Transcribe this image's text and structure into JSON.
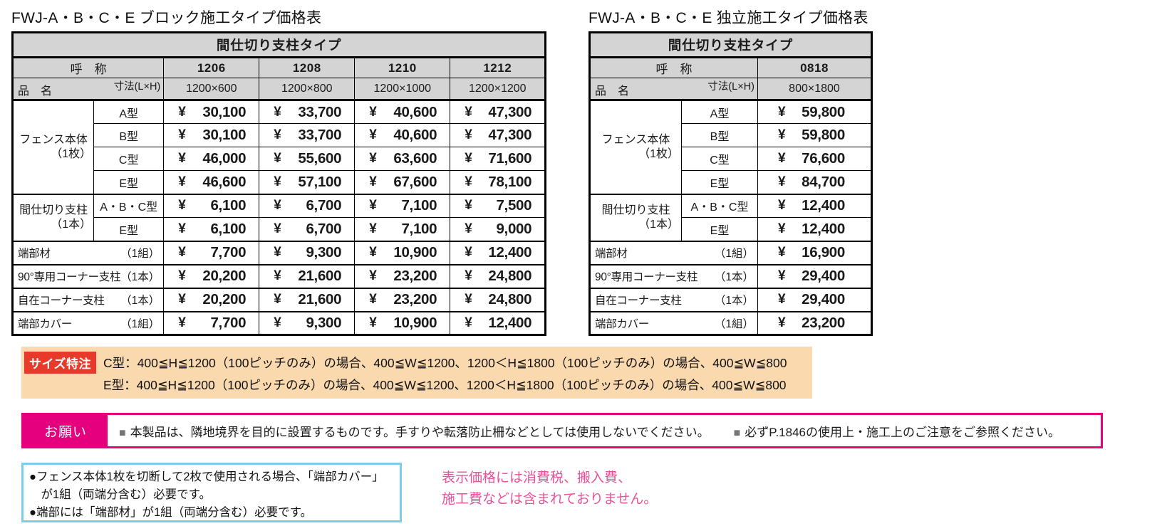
{
  "currency": "¥",
  "colors": {
    "header-gray": "#d4d4d4",
    "note-bg": "#fbd9ae",
    "note-tag": "#e83a2a",
    "magenta": "#e5007e",
    "blue-border": "#7dcdea",
    "pink-text": "#e9519a",
    "bullet-gray": "#757575"
  },
  "tables": [
    {
      "title": "FWJ-A・B・C・E ブロック施工タイプ価格表",
      "header_title": "間仕切り支柱タイプ",
      "name_label": "呼　称",
      "item_label": "品　名",
      "dim_label": "寸法(L×H)",
      "columns": [
        {
          "code": "1206",
          "size": "1200×600"
        },
        {
          "code": "1208",
          "size": "1200×800"
        },
        {
          "code": "1210",
          "size": "1200×1000"
        },
        {
          "code": "1212",
          "size": "1200×1200"
        }
      ],
      "groups": [
        {
          "label": "フェンス本体",
          "unit": "（1枚）",
          "rows": [
            {
              "type": "A型",
              "prices": [
                "30,100",
                "33,700",
                "40,600",
                "47,300"
              ]
            },
            {
              "type": "B型",
              "prices": [
                "30,100",
                "33,700",
                "40,600",
                "47,300"
              ]
            },
            {
              "type": "C型",
              "prices": [
                "46,000",
                "55,600",
                "63,600",
                "71,600"
              ]
            },
            {
              "type": "E型",
              "prices": [
                "46,600",
                "57,100",
                "67,600",
                "78,100"
              ]
            }
          ]
        },
        {
          "label": "間仕切り支柱",
          "unit": "（1本）",
          "rows": [
            {
              "type": "A・B・C型",
              "prices": [
                "6,100",
                "6,700",
                "7,100",
                "7,500"
              ]
            },
            {
              "type": "E型",
              "prices": [
                "6,100",
                "6,700",
                "7,100",
                "9,000"
              ]
            }
          ]
        }
      ],
      "singles": [
        {
          "label": "端部材",
          "unit": "（1組）",
          "prices": [
            "7,700",
            "9,300",
            "10,900",
            "12,400"
          ]
        },
        {
          "label": "90°専用コーナー支柱",
          "unit": "（1本）",
          "prices": [
            "20,200",
            "21,600",
            "23,200",
            "24,800"
          ]
        },
        {
          "label": "自在コーナー支柱",
          "unit": "（1本）",
          "prices": [
            "20,200",
            "21,600",
            "23,200",
            "24,800"
          ]
        },
        {
          "label": "端部カバー",
          "unit": "（1組）",
          "prices": [
            "7,700",
            "9,300",
            "10,900",
            "12,400"
          ]
        }
      ]
    },
    {
      "title": "FWJ-A・B・C・E 独立施工タイプ価格表",
      "header_title": "間仕切り支柱タイプ",
      "name_label": "呼　称",
      "item_label": "品　名",
      "dim_label": "寸法(L×H)",
      "columns": [
        {
          "code": "0818",
          "size": "800×1800"
        }
      ],
      "groups": [
        {
          "label": "フェンス本体",
          "unit": "（1枚）",
          "rows": [
            {
              "type": "A型",
              "prices": [
                "59,800"
              ]
            },
            {
              "type": "B型",
              "prices": [
                "59,800"
              ]
            },
            {
              "type": "C型",
              "prices": [
                "76,600"
              ]
            },
            {
              "type": "E型",
              "prices": [
                "84,700"
              ]
            }
          ]
        },
        {
          "label": "間仕切り支柱",
          "unit": "（1本）",
          "rows": [
            {
              "type": "A・B・C型",
              "prices": [
                "12,400"
              ]
            },
            {
              "type": "E型",
              "prices": [
                "12,400"
              ]
            }
          ]
        }
      ],
      "singles": [
        {
          "label": "端部材",
          "unit": "（1組）",
          "prices": [
            "16,900"
          ]
        },
        {
          "label": "90°専用コーナー支柱",
          "unit": "（1本）",
          "prices": [
            "29,400"
          ]
        },
        {
          "label": "自在コーナー支柱",
          "unit": "（1本）",
          "prices": [
            "29,400"
          ]
        },
        {
          "label": "端部カバー",
          "unit": "（1組）",
          "prices": [
            "23,200"
          ]
        }
      ]
    }
  ],
  "size_note": {
    "tag": "サイズ特注",
    "lines": [
      "C型：400≦H≦1200（100ピッチのみ）の場合、400≦W≦1200、1200＜H≦1800（100ピッチのみ）の場合、400≦W≦800",
      "E型：400≦H≦1200（100ピッチのみ）の場合、400≦W≦1200、1200＜H≦1800（100ピッチのみ）の場合、400≦W≦800"
    ]
  },
  "request_note": {
    "label": "お願い",
    "bullet": "■",
    "items": [
      "本製品は、隣地境界を目的に設置するものです。手すりや転落防止柵などとしては使用しないでください。",
      "必ずP.1846の使用上・施工上のご注意をご参照ください。"
    ]
  },
  "usage_note": {
    "lines": [
      "●フェンス本体1枚を切断して2枚で使用される場合、「端部カバー」が1組（両端分含む）必要です。",
      "●端部には「端部材」が1組（両端分含む）必要です。"
    ]
  },
  "price_disclaimer": {
    "lines": [
      "表示価格には消費税、搬入費、",
      "施工費などは含まれておりません。"
    ]
  }
}
